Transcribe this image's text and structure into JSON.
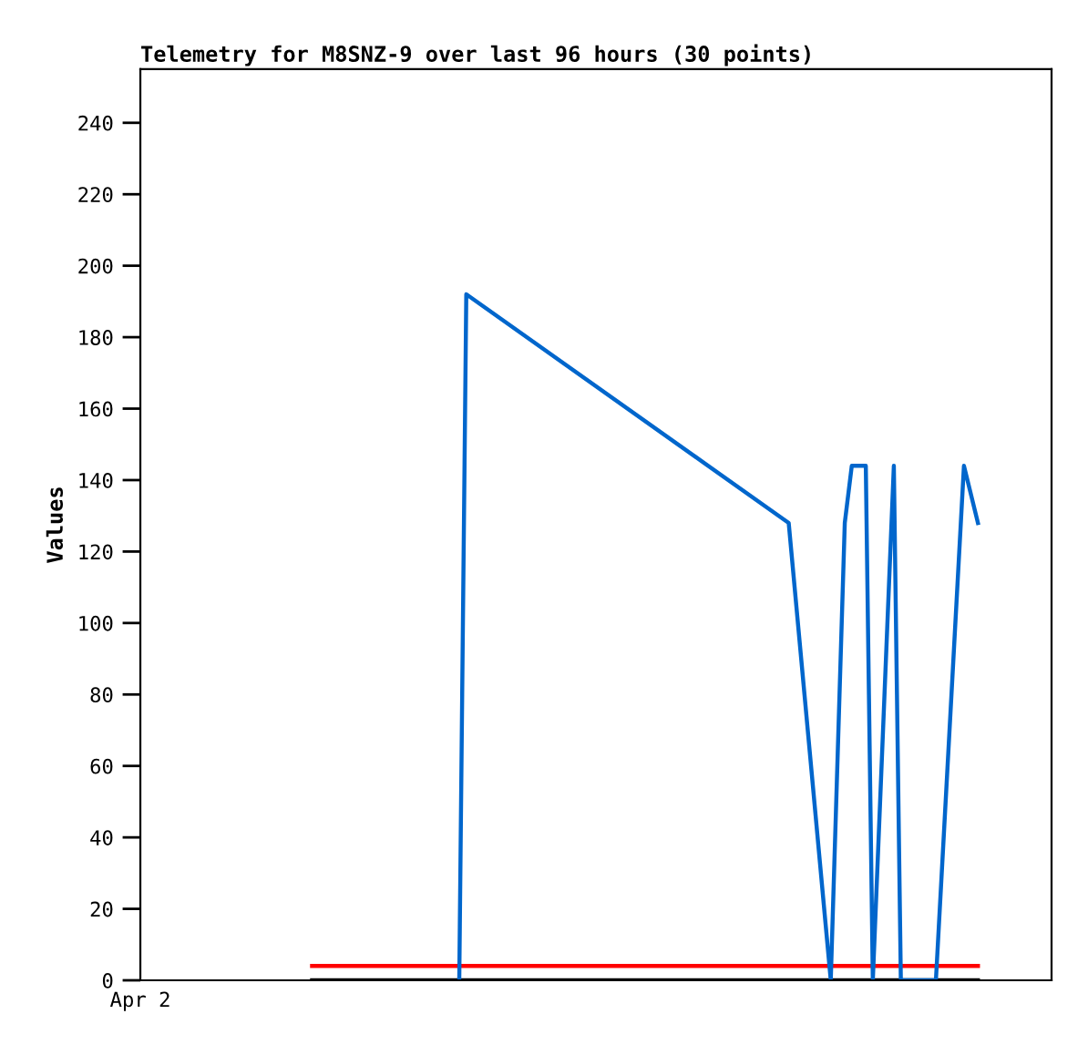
{
  "chart_data": {
    "type": "line",
    "title": "Telemetry for M8SNZ-9 over last 96 hours (30 points)",
    "ylabel": "Values",
    "annotations": [
      "Apr 2"
    ],
    "categories": [
      null,
      null,
      null,
      null,
      null,
      null,
      null,
      null,
      null,
      null,
      null,
      null,
      null,
      null,
      null,
      null,
      null,
      null,
      null,
      null,
      null,
      null,
      null,
      null,
      null,
      null,
      null,
      null,
      null,
      null,
      null,
      null,
      null,
      null,
      null,
      null,
      null,
      null,
      null,
      null,
      null,
      null,
      null,
      null,
      null,
      null,
      null,
      null,
      null,
      null,
      null,
      null,
      null,
      null,
      null,
      null,
      null,
      null,
      null,
      null,
      null,
      null,
      null,
      null,
      null,
      null,
      null,
      null,
      null,
      null,
      null,
      null,
      null,
      null,
      null,
      null,
      null,
      null,
      null,
      null,
      null,
      null,
      null,
      null,
      null,
      null,
      null,
      null,
      null,
      null,
      null,
      null,
      null,
      null,
      null,
      null,
      null,
      null,
      null,
      null,
      null,
      null,
      null,
      null,
      null,
      null,
      null,
      null,
      null,
      null,
      null,
      null,
      null,
      null,
      null,
      null,
      null,
      null,
      null,
      null,
      null,
      null,
      null,
      null,
      null,
      null,
      null,
      null,
      null,
      null
    ],
    "ylim": [
      0,
      255
    ],
    "yticks": [
      0,
      20,
      40,
      60,
      80,
      100,
      120,
      140,
      160,
      180,
      200,
      220,
      240
    ],
    "series": [
      {
        "color": "#000000",
        "values": [
          null,
          null,
          null,
          null,
          null,
          null,
          null,
          null,
          null,
          null,
          null,
          null,
          null,
          null,
          null,
          null,
          null,
          null,
          null,
          null,
          null,
          null,
          null,
          null,
          0,
          null,
          null,
          null,
          null,
          null,
          null,
          null,
          null,
          null,
          null,
          null,
          null,
          null,
          null,
          null,
          null,
          null,
          null,
          null,
          null,
          null,
          null,
          null,
          null,
          null,
          null,
          null,
          null,
          null,
          null,
          null,
          null,
          null,
          null,
          null,
          null,
          null,
          null,
          null,
          null,
          null,
          null,
          null,
          null,
          null,
          null,
          null,
          null,
          null,
          null,
          null,
          null,
          null,
          null,
          null,
          null,
          null,
          null,
          null,
          null,
          null,
          null,
          null,
          null,
          null,
          null,
          null,
          null,
          null,
          null,
          null,
          null,
          null,
          null,
          null,
          null,
          null,
          null,
          null,
          null,
          null,
          null,
          null,
          null,
          null,
          null,
          null,
          null,
          null,
          null,
          null,
          null,
          null,
          null,
          0,
          null,
          null,
          null,
          null,
          null,
          null,
          null,
          null,
          null,
          null
        ]
      },
      {
        "color": "#ff0000",
        "values": [
          null,
          null,
          null,
          null,
          null,
          null,
          null,
          null,
          null,
          null,
          null,
          null,
          null,
          null,
          null,
          null,
          null,
          null,
          null,
          null,
          null,
          null,
          null,
          null,
          4,
          null,
          null,
          null,
          null,
          null,
          null,
          null,
          null,
          null,
          null,
          null,
          null,
          null,
          null,
          null,
          null,
          null,
          null,
          null,
          null,
          null,
          null,
          null,
          null,
          null,
          null,
          null,
          null,
          null,
          null,
          null,
          null,
          null,
          null,
          null,
          null,
          null,
          null,
          null,
          null,
          null,
          null,
          null,
          null,
          null,
          null,
          null,
          null,
          null,
          null,
          null,
          null,
          null,
          null,
          null,
          null,
          null,
          null,
          null,
          null,
          null,
          null,
          null,
          null,
          null,
          null,
          null,
          null,
          null,
          null,
          null,
          null,
          null,
          null,
          null,
          null,
          null,
          null,
          null,
          null,
          null,
          null,
          null,
          null,
          null,
          null,
          null,
          null,
          null,
          null,
          null,
          null,
          null,
          null,
          4,
          null,
          null,
          null,
          null,
          null,
          null,
          null,
          null,
          null,
          null
        ]
      },
      {
        "color": "#0066cc",
        "values": [
          null,
          null,
          null,
          null,
          null,
          null,
          null,
          null,
          null,
          null,
          null,
          null,
          null,
          null,
          null,
          null,
          null,
          null,
          null,
          null,
          null,
          null,
          null,
          null,
          null,
          null,
          null,
          null,
          null,
          null,
          null,
          null,
          null,
          null,
          null,
          null,
          null,
          null,
          null,
          null,
          null,
          null,
          null,
          null,
          null,
          0,
          192,
          null,
          null,
          null,
          null,
          null,
          null,
          null,
          null,
          null,
          null,
          null,
          null,
          null,
          null,
          null,
          null,
          null,
          null,
          null,
          null,
          null,
          null,
          null,
          null,
          null,
          null,
          null,
          null,
          null,
          null,
          null,
          null,
          null,
          null,
          null,
          null,
          null,
          null,
          null,
          null,
          null,
          null,
          null,
          null,
          null,
          128,
          null,
          null,
          null,
          null,
          null,
          0,
          null,
          128,
          144,
          null,
          144,
          0,
          null,
          null,
          144,
          0,
          null,
          null,
          null,
          null,
          0,
          null,
          null,
          null,
          144,
          null,
          128,
          null,
          null,
          null,
          null,
          null,
          null,
          null,
          null,
          null,
          null
        ]
      }
    ],
    "marker": "none",
    "line_style": "solid"
  }
}
